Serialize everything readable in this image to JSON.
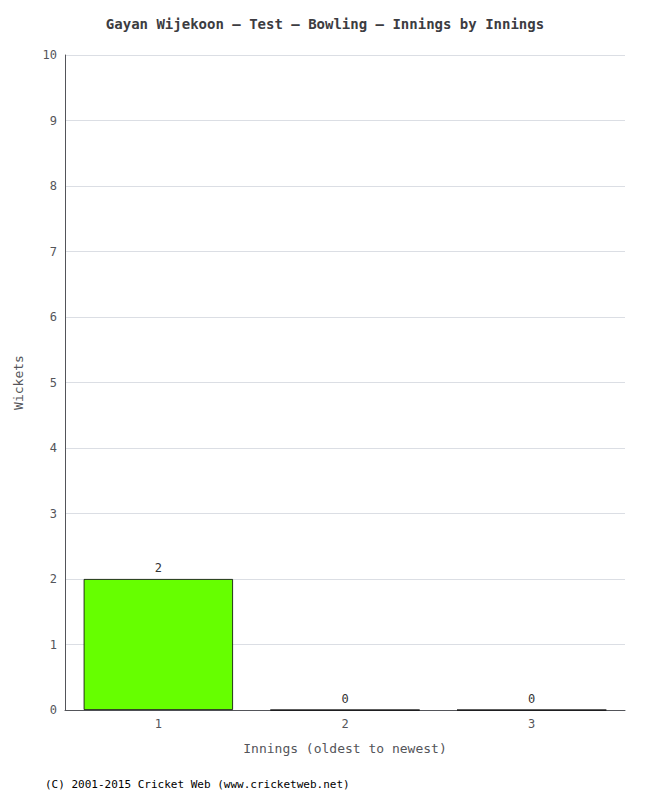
{
  "chart_data": {
    "type": "bar",
    "title": "Gayan Wijekoon – Test – Bowling – Innings by Innings",
    "xlabel": "Innings (oldest to newest)",
    "ylabel": "Wickets",
    "categories": [
      1,
      2,
      3
    ],
    "values": [
      2,
      0,
      0
    ],
    "color": "#66ff00",
    "ylim": [
      0,
      10
    ],
    "yticks": [
      0,
      1,
      2,
      3,
      4,
      5,
      6,
      7,
      8,
      9,
      10
    ],
    "grid": true,
    "data_labels": true,
    "annotations": [
      "(C) 2001-2015 Cricket Web (www.cricketweb.net)"
    ]
  }
}
